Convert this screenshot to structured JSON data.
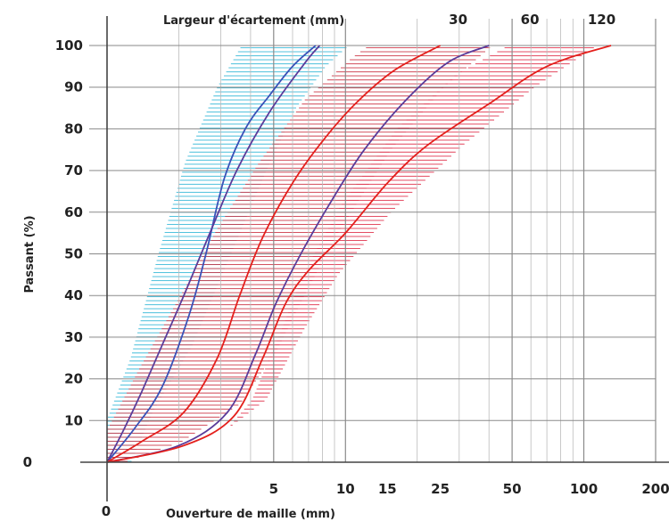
{
  "chart_data": {
    "type": "line",
    "x_scale": "log",
    "xlim": [
      1,
      200
    ],
    "ylim": [
      0,
      100
    ],
    "xlabel": "Ouverture de maille (mm)",
    "ylabel": "Passant (%)",
    "top_axis_label": "Largeur d'écartement (mm)",
    "origin_label": "0",
    "y_ticks": [
      "0",
      "10",
      "20",
      "30",
      "40",
      "50",
      "60",
      "70",
      "80",
      "90",
      "100"
    ],
    "x_tick_labels": [
      {
        "value": 5,
        "label": "5"
      },
      {
        "value": 10,
        "label": "10"
      },
      {
        "value": 15,
        "label": "15"
      },
      {
        "value": 25,
        "label": "25"
      },
      {
        "value": 50,
        "label": "50"
      },
      {
        "value": 100,
        "label": "100"
      },
      {
        "value": 200,
        "label": "200"
      }
    ],
    "top_tick_labels": [
      {
        "value": 25,
        "label": "30"
      },
      {
        "value": 50,
        "label": "60"
      },
      {
        "value": 100,
        "label": "120"
      }
    ],
    "grid": true,
    "colors": {
      "band_cyan": "#35b8d8",
      "band_red": "#cc3344",
      "band_crimson": "#e0304a",
      "curve_blue": "#3a52b8",
      "curve_red": "#e4201c",
      "curve_purple": "#5a3c9a",
      "axis": "#444444",
      "grid_major": "#8a8a8a",
      "grid_minor": "#bbbbbb"
    },
    "bands": [
      {
        "color_key": "band_cyan",
        "lower": [
          [
            1.22,
            0
          ],
          [
            1.5,
            12
          ],
          [
            2.2,
            28
          ],
          [
            3.2,
            50
          ],
          [
            4.5,
            70
          ],
          [
            6,
            85
          ],
          [
            8,
            95
          ],
          [
            10,
            100
          ]
        ],
        "upper": [
          [
            1,
            8
          ],
          [
            1.3,
            25
          ],
          [
            1.7,
            50
          ],
          [
            2.2,
            72
          ],
          [
            3,
            90
          ],
          [
            3.8,
            100
          ]
        ]
      },
      {
        "color_key": "band_red",
        "lower": [
          [
            1.15,
            0
          ],
          [
            2,
            5
          ],
          [
            3.5,
            14
          ],
          [
            5,
            27
          ],
          [
            6.5,
            40
          ],
          [
            9,
            55
          ],
          [
            15,
            75
          ],
          [
            25,
            90
          ],
          [
            40,
            100
          ]
        ],
        "upper": [
          [
            1,
            6
          ],
          [
            1.4,
            22
          ],
          [
            2.2,
            42
          ],
          [
            3,
            56
          ],
          [
            4.5,
            72
          ],
          [
            7,
            87
          ],
          [
            11,
            97
          ],
          [
            13,
            100
          ]
        ]
      },
      {
        "color_key": "band_crimson",
        "lower": [
          [
            1.2,
            0
          ],
          [
            2.5,
            4
          ],
          [
            4.5,
            15
          ],
          [
            6.5,
            32
          ],
          [
            9,
            45
          ],
          [
            15,
            60
          ],
          [
            30,
            76
          ],
          [
            60,
            90
          ],
          [
            110,
            100
          ]
        ],
        "upper": [
          [
            2.7,
            2
          ],
          [
            4.2,
            15
          ],
          [
            5.6,
            32
          ],
          [
            7,
            46
          ],
          [
            10,
            62
          ],
          [
            17,
            80
          ],
          [
            30,
            93
          ],
          [
            50,
            100
          ]
        ]
      }
    ],
    "series": [
      {
        "color_key": "curve_blue",
        "points": [
          [
            1,
            0
          ],
          [
            1.3,
            8
          ],
          [
            1.7,
            18
          ],
          [
            2.2,
            35
          ],
          [
            2.6,
            50
          ],
          [
            3.1,
            68
          ],
          [
            3.8,
            80
          ],
          [
            4.8,
            88
          ],
          [
            6,
            95
          ],
          [
            7.5,
            100
          ]
        ]
      },
      {
        "color_key": "curve_purple",
        "points": [
          [
            1,
            0
          ],
          [
            1.18,
            8
          ],
          [
            1.4,
            17
          ],
          [
            1.7,
            28
          ],
          [
            2.1,
            40
          ],
          [
            2.7,
            55
          ],
          [
            3.5,
            70
          ],
          [
            4.8,
            84
          ],
          [
            6.8,
            96
          ],
          [
            7.8,
            100
          ]
        ]
      },
      {
        "color_key": "curve_red",
        "points": [
          [
            1,
            0
          ],
          [
            1.4,
            5
          ],
          [
            2.1,
            12
          ],
          [
            2.9,
            25
          ],
          [
            3.6,
            40
          ],
          [
            4.5,
            54
          ],
          [
            6,
            67
          ],
          [
            8,
            77
          ],
          [
            11,
            86
          ],
          [
            16,
            94
          ],
          [
            25,
            100
          ]
        ]
      },
      {
        "color_key": "curve_purple",
        "points": [
          [
            1,
            0
          ],
          [
            2,
            4
          ],
          [
            3.2,
            12
          ],
          [
            4.2,
            26
          ],
          [
            5.1,
            38
          ],
          [
            6.5,
            50
          ],
          [
            8.8,
            63
          ],
          [
            12,
            75
          ],
          [
            18,
            87
          ],
          [
            27,
            96
          ],
          [
            40,
            100
          ]
        ]
      },
      {
        "color_key": "curve_red",
        "points": [
          [
            1,
            0
          ],
          [
            2.1,
            4
          ],
          [
            3.4,
            11
          ],
          [
            4.5,
            25
          ],
          [
            5.6,
            38
          ],
          [
            7,
            46
          ],
          [
            10,
            55
          ],
          [
            15,
            67
          ],
          [
            22,
            76
          ],
          [
            40,
            86
          ],
          [
            70,
            95
          ],
          [
            130,
            100
          ]
        ]
      }
    ]
  }
}
